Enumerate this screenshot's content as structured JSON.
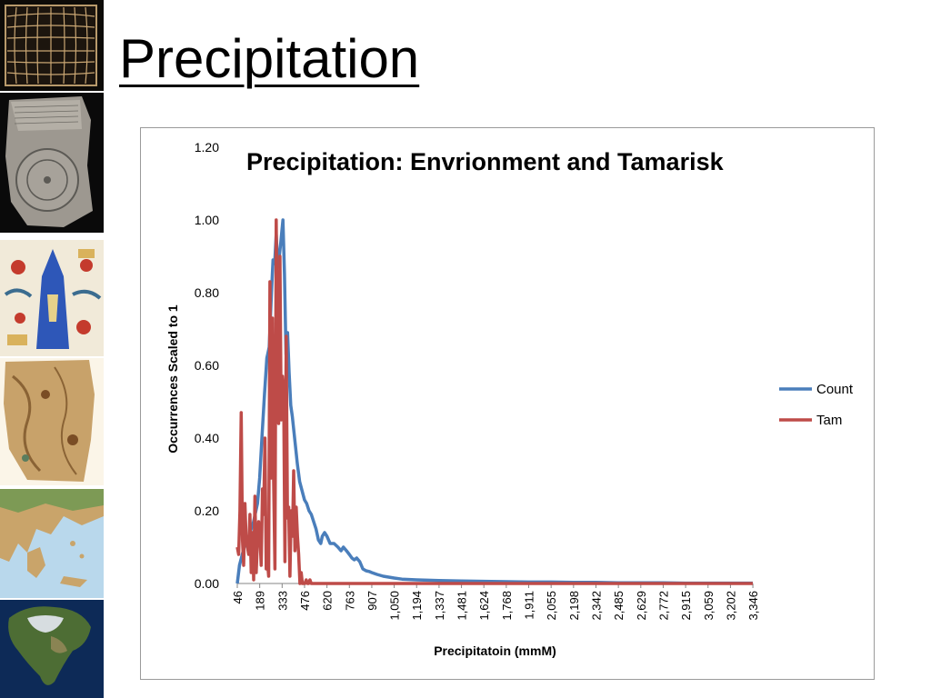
{
  "slide": {
    "title": "Precipitation"
  },
  "thumbnails": [
    {
      "name": "grid-map-thumbnail"
    },
    {
      "name": "clay-tablet-map-thumbnail"
    },
    {
      "name": "medieval-map-thumbnail"
    },
    {
      "name": "parchment-map-thumbnail"
    },
    {
      "name": "greece-relief-map-thumbnail"
    },
    {
      "name": "north-america-satellite-thumbnail"
    }
  ],
  "chart_data": {
    "type": "line",
    "title": "Precipitation: Envrionment and Tamarisk",
    "xlabel": "Precipitatoin (mmM)",
    "ylabel": "Occurrences Scaled to 1",
    "ylim": [
      0,
      1.2
    ],
    "y_ticks": [
      "0.00",
      "0.20",
      "0.40",
      "0.60",
      "0.80",
      "1.00",
      "1.20"
    ],
    "x_tick_labels": [
      "46",
      "189",
      "333",
      "476",
      "620",
      "763",
      "907",
      "1,050",
      "1,194",
      "1,337",
      "1,481",
      "1,624",
      "1,768",
      "1,911",
      "2,055",
      "2,198",
      "2,342",
      "2,485",
      "2,629",
      "2,772",
      "2,915",
      "3,059",
      "3,202",
      "3,346"
    ],
    "x_step_mm": 143.5,
    "legend_position": "right",
    "series": [
      {
        "name": "Count",
        "color": "#4a7ebb",
        "points": [
          [
            46,
            0.0
          ],
          [
            60,
            0.05
          ],
          [
            90,
            0.1
          ],
          [
            120,
            0.13
          ],
          [
            150,
            0.17
          ],
          [
            175,
            0.22
          ],
          [
            189,
            0.29
          ],
          [
            205,
            0.41
          ],
          [
            220,
            0.52
          ],
          [
            235,
            0.62
          ],
          [
            250,
            0.65
          ],
          [
            265,
            0.8
          ],
          [
            275,
            0.89
          ],
          [
            285,
            0.88
          ],
          [
            295,
            0.96
          ],
          [
            305,
            0.87
          ],
          [
            315,
            0.9
          ],
          [
            325,
            0.94
          ],
          [
            338,
            1.0
          ],
          [
            348,
            0.85
          ],
          [
            358,
            0.63
          ],
          [
            368,
            0.69
          ],
          [
            378,
            0.58
          ],
          [
            388,
            0.49
          ],
          [
            398,
            0.46
          ],
          [
            408,
            0.42
          ],
          [
            418,
            0.38
          ],
          [
            430,
            0.33
          ],
          [
            445,
            0.28
          ],
          [
            476,
            0.23
          ],
          [
            490,
            0.22
          ],
          [
            505,
            0.2
          ],
          [
            520,
            0.19
          ],
          [
            535,
            0.17
          ],
          [
            550,
            0.15
          ],
          [
            565,
            0.12
          ],
          [
            580,
            0.11
          ],
          [
            590,
            0.13
          ],
          [
            605,
            0.14
          ],
          [
            620,
            0.13
          ],
          [
            640,
            0.11
          ],
          [
            665,
            0.11
          ],
          [
            690,
            0.1
          ],
          [
            710,
            0.09
          ],
          [
            725,
            0.1
          ],
          [
            745,
            0.09
          ],
          [
            763,
            0.08
          ],
          [
            780,
            0.07
          ],
          [
            795,
            0.065
          ],
          [
            810,
            0.07
          ],
          [
            830,
            0.06
          ],
          [
            850,
            0.04
          ],
          [
            870,
            0.035
          ],
          [
            890,
            0.033
          ],
          [
            907,
            0.03
          ],
          [
            940,
            0.025
          ],
          [
            980,
            0.02
          ],
          [
            1050,
            0.015
          ],
          [
            1100,
            0.012
          ],
          [
            1194,
            0.01
          ],
          [
            1337,
            0.008
          ],
          [
            1481,
            0.007
          ],
          [
            1624,
            0.006
          ],
          [
            1768,
            0.005
          ],
          [
            1911,
            0.004
          ],
          [
            2055,
            0.004
          ],
          [
            2198,
            0.003
          ],
          [
            2342,
            0.003
          ],
          [
            2485,
            0.002
          ],
          [
            2629,
            0.002
          ],
          [
            2772,
            0.002
          ],
          [
            2915,
            0.001
          ],
          [
            3059,
            0.001
          ],
          [
            3202,
            0.001
          ],
          [
            3346,
            0.001
          ]
        ]
      },
      {
        "name": "Tam",
        "color": "#be4b48",
        "points": [
          [
            46,
            0.1
          ],
          [
            55,
            0.08
          ],
          [
            63,
            0.2
          ],
          [
            71,
            0.47
          ],
          [
            79,
            0.12
          ],
          [
            87,
            0.05
          ],
          [
            95,
            0.22
          ],
          [
            103,
            0.12
          ],
          [
            111,
            0.1
          ],
          [
            119,
            0.08
          ],
          [
            127,
            0.19
          ],
          [
            135,
            0.03
          ],
          [
            143,
            0.14
          ],
          [
            151,
            0.01
          ],
          [
            159,
            0.24
          ],
          [
            167,
            0.03
          ],
          [
            175,
            0.12
          ],
          [
            183,
            0.17
          ],
          [
            191,
            0.13
          ],
          [
            199,
            0.05
          ],
          [
            207,
            0.26
          ],
          [
            215,
            0.19
          ],
          [
            223,
            0.4
          ],
          [
            231,
            0.04
          ],
          [
            239,
            0.06
          ],
          [
            247,
            0.02
          ],
          [
            255,
            0.83
          ],
          [
            263,
            0.29
          ],
          [
            271,
            0.73
          ],
          [
            279,
            0.28
          ],
          [
            287,
            0.04
          ],
          [
            295,
            1.0
          ],
          [
            303,
            0.59
          ],
          [
            311,
            0.44
          ],
          [
            319,
            0.9
          ],
          [
            327,
            0.45
          ],
          [
            335,
            0.57
          ],
          [
            343,
            0.53
          ],
          [
            351,
            0.06
          ],
          [
            359,
            0.68
          ],
          [
            367,
            0.18
          ],
          [
            375,
            0.21
          ],
          [
            383,
            0.02
          ],
          [
            391,
            0.2
          ],
          [
            399,
            0.13
          ],
          [
            407,
            0.31
          ],
          [
            415,
            0.09
          ],
          [
            423,
            0.21
          ],
          [
            431,
            0.13
          ],
          [
            439,
            0.08
          ],
          [
            447,
            0.0
          ],
          [
            455,
            0.03
          ],
          [
            463,
            0.0
          ],
          [
            471,
            0.0
          ],
          [
            479,
            0.0
          ],
          [
            487,
            0.01
          ],
          [
            495,
            0.0
          ],
          [
            503,
            0.0
          ],
          [
            511,
            0.01
          ],
          [
            519,
            0.0
          ],
          [
            540,
            0.0
          ],
          [
            620,
            0.0
          ],
          [
            907,
            0.0
          ],
          [
            1337,
            0.0
          ],
          [
            1911,
            0.0
          ],
          [
            2485,
            0.0
          ],
          [
            3059,
            0.0
          ],
          [
            3346,
            0.0
          ]
        ]
      }
    ]
  }
}
